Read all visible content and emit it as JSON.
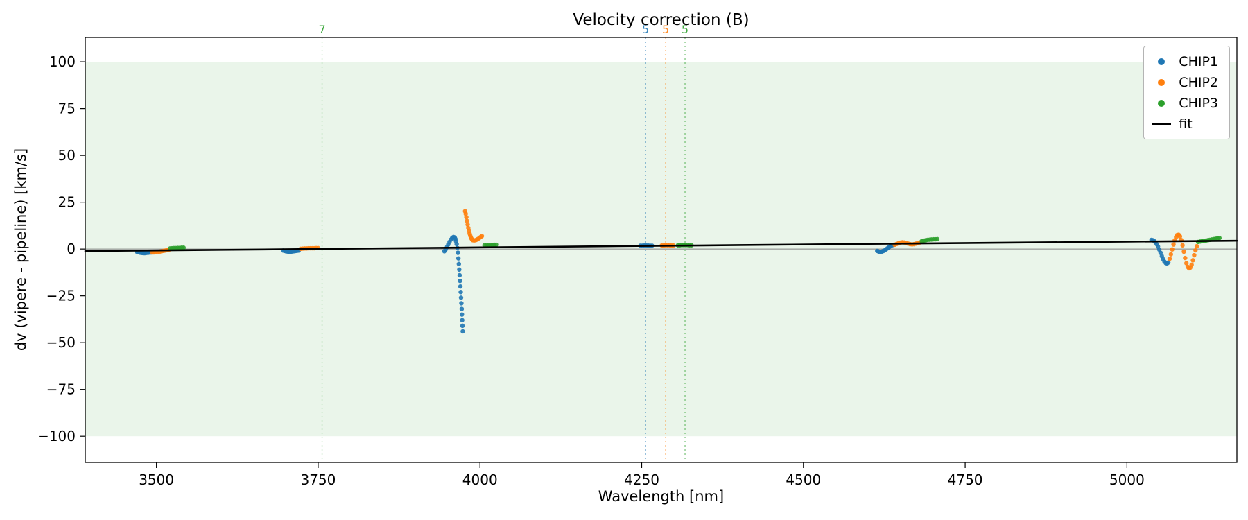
{
  "chart_data": {
    "type": "scatter",
    "title": "Velocity correction (B)",
    "xlabel": "Wavelength [nm]",
    "ylabel": "dv (vipere - pipeline) [km/s]",
    "xlim": [
      3390,
      5170
    ],
    "ylim": [
      -114,
      113
    ],
    "xticks": [
      3500,
      3750,
      4000,
      4250,
      4500,
      4750,
      5000
    ],
    "yticks": [
      -100,
      -75,
      -50,
      -25,
      0,
      25,
      50,
      75,
      100
    ],
    "grid": false,
    "band": {
      "ymin": -100,
      "ymax": 100,
      "color": "#eaf5ea"
    },
    "zero_line": {
      "y": 0,
      "color": "#808080"
    },
    "vlines": [
      {
        "x": 3756,
        "label": "7",
        "color": "#2ca02c"
      },
      {
        "x": 4256,
        "label": "5",
        "color": "#1f77b4"
      },
      {
        "x": 4287,
        "label": "5",
        "color": "#ff7f0e"
      },
      {
        "x": 4317,
        "label": "5",
        "color": "#2ca02c"
      }
    ],
    "legend_position": "top-right",
    "series": [
      {
        "name": "CHIP1",
        "color": "#1f77b4",
        "points": [
          [
            3470,
            -1.5
          ],
          [
            3472,
            -1.7
          ],
          [
            3474,
            -1.9
          ],
          [
            3476,
            -2.0
          ],
          [
            3478,
            -2.1
          ],
          [
            3480,
            -2.2
          ],
          [
            3482,
            -2.2
          ],
          [
            3484,
            -2.1
          ],
          [
            3487,
            -2.0
          ],
          [
            3490,
            -1.9
          ],
          [
            3492,
            -1.8
          ],
          [
            3495,
            -1.6
          ],
          [
            3696,
            -0.8
          ],
          [
            3698,
            -1.0
          ],
          [
            3700,
            -1.2
          ],
          [
            3702,
            -1.3
          ],
          [
            3704,
            -1.4
          ],
          [
            3706,
            -1.5
          ],
          [
            3708,
            -1.4
          ],
          [
            3710,
            -1.3
          ],
          [
            3712,
            -1.2
          ],
          [
            3714,
            -1.1
          ],
          [
            3716,
            -1.0
          ],
          [
            3718,
            -0.9
          ],
          [
            3720,
            -0.8
          ],
          [
            3945,
            -1.2
          ],
          [
            3947,
            -0.2
          ],
          [
            3949,
            1.0
          ],
          [
            3951,
            2.4
          ],
          [
            3953,
            3.8
          ],
          [
            3955,
            5.0
          ],
          [
            3957,
            5.9
          ],
          [
            3959,
            6.4
          ],
          [
            3961,
            6.2
          ],
          [
            3962,
            5.4
          ],
          [
            3963,
            4.2
          ],
          [
            3964,
            2.6
          ],
          [
            3965,
            0.6
          ],
          [
            3966,
            -2.0
          ],
          [
            3966.7,
            -5.0
          ],
          [
            3967.4,
            -8.0
          ],
          [
            3968,
            -11.0
          ],
          [
            3968.6,
            -14.0
          ],
          [
            3969.2,
            -17.0
          ],
          [
            3969.8,
            -20.0
          ],
          [
            3970.3,
            -23.0
          ],
          [
            3970.8,
            -26.0
          ],
          [
            3971.3,
            -29.0
          ],
          [
            3971.8,
            -32.0
          ],
          [
            3972.2,
            -35.0
          ],
          [
            3972.6,
            -38.0
          ],
          [
            3973,
            -41.0
          ],
          [
            3973.4,
            -44.0
          ],
          [
            4248,
            1.8
          ],
          [
            4251,
            1.8
          ],
          [
            4254,
            1.9
          ],
          [
            4257,
            1.9
          ],
          [
            4260,
            1.9
          ],
          [
            4263,
            1.8
          ],
          [
            4266,
            1.8
          ],
          [
            4614,
            -1.0
          ],
          [
            4616,
            -1.3
          ],
          [
            4618,
            -1.5
          ],
          [
            4620,
            -1.5
          ],
          [
            4622,
            -1.3
          ],
          [
            4624,
            -1.0
          ],
          [
            4626,
            -0.6
          ],
          [
            4628,
            -0.1
          ],
          [
            4630,
            0.4
          ],
          [
            4632,
            0.9
          ],
          [
            4634,
            1.4
          ],
          [
            4636,
            1.8
          ],
          [
            4638,
            2.1
          ],
          [
            4640,
            2.3
          ],
          [
            5038,
            4.9
          ],
          [
            5040,
            4.7
          ],
          [
            5042,
            4.3
          ],
          [
            5044,
            3.6
          ],
          [
            5046,
            2.6
          ],
          [
            5048,
            1.3
          ],
          [
            5050,
            -0.3
          ],
          [
            5052,
            -2.0
          ],
          [
            5054,
            -3.8
          ],
          [
            5056,
            -5.4
          ],
          [
            5058,
            -6.7
          ],
          [
            5060,
            -7.5
          ],
          [
            5062,
            -7.7
          ],
          [
            5064,
            -7.2
          ]
        ]
      },
      {
        "name": "CHIP2",
        "color": "#ff7f0e",
        "points": [
          [
            3493,
            -1.8
          ],
          [
            3496,
            -1.8
          ],
          [
            3499,
            -1.7
          ],
          [
            3502,
            -1.6
          ],
          [
            3505,
            -1.4
          ],
          [
            3508,
            -1.2
          ],
          [
            3511,
            -1.0
          ],
          [
            3514,
            -0.8
          ],
          [
            3517,
            -0.6
          ],
          [
            3519,
            -0.5
          ],
          [
            3723,
            0.1
          ],
          [
            3726,
            0.2
          ],
          [
            3729,
            0.3
          ],
          [
            3732,
            0.3
          ],
          [
            3735,
            0.4
          ],
          [
            3738,
            0.4
          ],
          [
            3741,
            0.4
          ],
          [
            3744,
            0.4
          ],
          [
            3747,
            0.5
          ],
          [
            3750,
            0.5
          ],
          [
            3977,
            20.2
          ],
          [
            3978,
            18.8
          ],
          [
            3979,
            17.0
          ],
          [
            3980,
            15.0
          ],
          [
            3981,
            13.0
          ],
          [
            3982,
            11.2
          ],
          [
            3983,
            9.6
          ],
          [
            3984,
            8.2
          ],
          [
            3985,
            7.1
          ],
          [
            3986,
            6.2
          ],
          [
            3987,
            5.5
          ],
          [
            3988,
            5.0
          ],
          [
            3989,
            4.7
          ],
          [
            3991,
            4.6
          ],
          [
            3993,
            4.7
          ],
          [
            3995,
            5.0
          ],
          [
            3997,
            5.4
          ],
          [
            3999,
            5.9
          ],
          [
            4001,
            6.4
          ],
          [
            4003,
            6.9
          ],
          [
            4281,
            1.9
          ],
          [
            4284,
            1.9
          ],
          [
            4287,
            2.0
          ],
          [
            4290,
            2.0
          ],
          [
            4293,
            2.0
          ],
          [
            4296,
            1.9
          ],
          [
            4299,
            1.9
          ],
          [
            4641,
            2.3
          ],
          [
            4644,
            2.7
          ],
          [
            4647,
            3.1
          ],
          [
            4650,
            3.4
          ],
          [
            4653,
            3.6
          ],
          [
            4656,
            3.5
          ],
          [
            4659,
            3.2
          ],
          [
            4662,
            2.9
          ],
          [
            4665,
            2.6
          ],
          [
            4668,
            2.5
          ],
          [
            4671,
            2.6
          ],
          [
            4674,
            2.9
          ],
          [
            4677,
            3.2
          ],
          [
            4680,
            3.5
          ],
          [
            5066,
            -5.2
          ],
          [
            5068,
            -2.8
          ],
          [
            5070,
            -0.2
          ],
          [
            5072,
            2.4
          ],
          [
            5074,
            4.7
          ],
          [
            5076,
            6.4
          ],
          [
            5078,
            7.5
          ],
          [
            5080,
            7.6
          ],
          [
            5082,
            6.7
          ],
          [
            5084,
            4.8
          ],
          [
            5086,
            2.0
          ],
          [
            5088,
            -1.4
          ],
          [
            5090,
            -4.8
          ],
          [
            5092,
            -7.6
          ],
          [
            5094,
            -9.5
          ],
          [
            5096,
            -10.3
          ],
          [
            5098,
            -9.9
          ],
          [
            5100,
            -8.4
          ],
          [
            5102,
            -6.0
          ],
          [
            5104,
            -3.3
          ],
          [
            5106,
            -0.7
          ],
          [
            5108,
            1.5
          ]
        ]
      },
      {
        "name": "CHIP3",
        "color": "#2ca02c",
        "points": [
          [
            3521,
            0.3
          ],
          [
            3524,
            0.4
          ],
          [
            3527,
            0.5
          ],
          [
            3530,
            0.5
          ],
          [
            3533,
            0.6
          ],
          [
            3536,
            0.6
          ],
          [
            3539,
            0.7
          ],
          [
            3542,
            0.7
          ],
          [
            4007,
            2.0
          ],
          [
            4010,
            2.1
          ],
          [
            4013,
            2.1
          ],
          [
            4016,
            2.2
          ],
          [
            4019,
            2.2
          ],
          [
            4022,
            2.3
          ],
          [
            4025,
            2.3
          ],
          [
            4306,
            2.0
          ],
          [
            4309,
            2.0
          ],
          [
            4312,
            2.1
          ],
          [
            4315,
            2.1
          ],
          [
            4318,
            2.1
          ],
          [
            4321,
            2.1
          ],
          [
            4324,
            2.0
          ],
          [
            4327,
            2.0
          ],
          [
            4683,
            4.2
          ],
          [
            4686,
            4.5
          ],
          [
            4689,
            4.7
          ],
          [
            4692,
            4.9
          ],
          [
            4695,
            5.0
          ],
          [
            4698,
            5.1
          ],
          [
            4701,
            5.2
          ],
          [
            4704,
            5.2
          ],
          [
            4707,
            5.3
          ],
          [
            5110,
            3.8
          ],
          [
            5113,
            4.0
          ],
          [
            5116,
            4.2
          ],
          [
            5119,
            4.4
          ],
          [
            5122,
            4.5
          ],
          [
            5125,
            4.7
          ],
          [
            5128,
            4.9
          ],
          [
            5131,
            5.1
          ],
          [
            5134,
            5.3
          ],
          [
            5137,
            5.5
          ],
          [
            5140,
            5.7
          ],
          [
            5143,
            5.9
          ]
        ]
      }
    ],
    "fit": {
      "name": "fit",
      "color": "#000000",
      "points": [
        [
          3390,
          -1.1
        ],
        [
          3600,
          -0.45
        ],
        [
          3800,
          0.2
        ],
        [
          4000,
          0.85
        ],
        [
          4200,
          1.5
        ],
        [
          4400,
          2.1
        ],
        [
          4600,
          2.75
        ],
        [
          4800,
          3.35
        ],
        [
          5000,
          3.95
        ],
        [
          5170,
          4.45
        ]
      ]
    }
  }
}
